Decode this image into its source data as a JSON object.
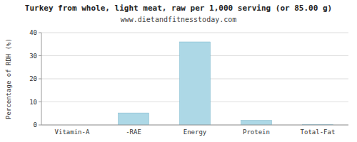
{
  "chart_data": {
    "type": "bar",
    "title": "Turkey from whole, light meat, raw per 1,000 serving (or 85.00 g)",
    "subtitle": "www.dietandfitnesstoday.com",
    "categories": [
      "Vitamin-A",
      "-RAE",
      "Energy",
      "Protein",
      "Total-Fat"
    ],
    "values": [
      0,
      5.2,
      36,
      2.0,
      0.2
    ],
    "color": "#add8e6",
    "ylabel": "Percentage of RDH (%)",
    "ylim": [
      0,
      40
    ],
    "yticks": [
      0,
      10,
      20,
      30,
      40
    ],
    "grid": true
  }
}
